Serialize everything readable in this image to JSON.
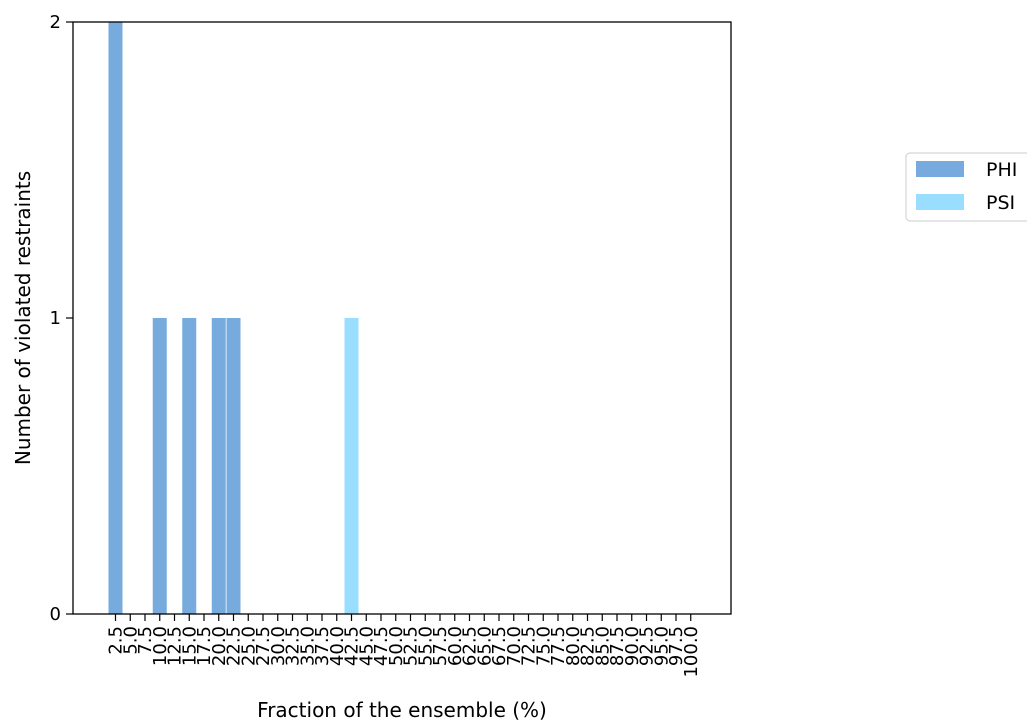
{
  "chart_data": {
    "type": "bar",
    "xlabel": "Fraction of the ensemble (%)",
    "ylabel": "Number of violated restraints",
    "categories": [
      "2.5",
      "5.0",
      "7.5",
      "10.0",
      "12.5",
      "15.0",
      "17.5",
      "20.0",
      "22.5",
      "25.0",
      "27.5",
      "30.0",
      "32.5",
      "35.0",
      "37.5",
      "40.0",
      "42.5",
      "45.0",
      "47.5",
      "50.0",
      "52.5",
      "55.0",
      "57.5",
      "60.0",
      "62.5",
      "65.0",
      "67.5",
      "70.0",
      "72.5",
      "75.0",
      "77.5",
      "80.0",
      "82.5",
      "85.0",
      "87.5",
      "90.0",
      "92.5",
      "95.0",
      "97.5",
      "100.0"
    ],
    "ylim": [
      0,
      2
    ],
    "yticks": [
      "0",
      "1",
      "2"
    ],
    "grid": false,
    "legend_position": "right, outside plot",
    "series": [
      {
        "name": "PHI",
        "color": "#77abdd",
        "values": [
          2,
          0,
          0,
          1,
          0,
          1,
          0,
          1,
          1,
          0,
          0,
          0,
          0,
          0,
          0,
          0,
          0,
          0,
          0,
          0,
          0,
          0,
          0,
          0,
          0,
          0,
          0,
          0,
          0,
          0,
          0,
          0,
          0,
          0,
          0,
          0,
          0,
          0,
          0,
          0
        ]
      },
      {
        "name": "PSI",
        "color": "#99ddff",
        "values": [
          0,
          0,
          0,
          0,
          0,
          0,
          0,
          0,
          0,
          0,
          0,
          0,
          0,
          0,
          0,
          0,
          1,
          0,
          0,
          0,
          0,
          0,
          0,
          0,
          0,
          0,
          0,
          0,
          0,
          0,
          0,
          0,
          0,
          0,
          0,
          0,
          0,
          0,
          0,
          0
        ]
      }
    ]
  }
}
